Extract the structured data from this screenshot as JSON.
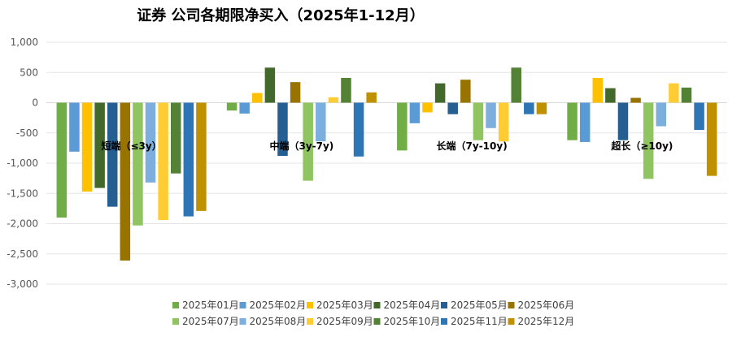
{
  "chart_data": {
    "type": "bar",
    "title": "证券 公司各期限净买入（2025年1-12月）",
    "xlabel": "",
    "ylabel": "",
    "ylim": [
      -3000,
      1000
    ],
    "yticks": [
      1000,
      500,
      0,
      -500,
      -1000,
      -1500,
      -2000,
      -2500,
      -3000
    ],
    "ytick_labels": [
      "1,000",
      "500",
      "0",
      "-500",
      "-1,000",
      "-1,500",
      "-2,000",
      "-2,500",
      "-3,000"
    ],
    "grid": true,
    "legend_position": "bottom",
    "categories": [
      "短端（≤3y）",
      "中端（3y-7y)",
      "长端（7y-10y)",
      "超长（≥10y)"
    ],
    "series": [
      {
        "name": "2025年01月",
        "color": "#70ad47",
        "values": [
          -1900,
          -130,
          -790,
          -620
        ]
      },
      {
        "name": "2025年02月",
        "color": "#5b9bd5",
        "values": [
          -810,
          -180,
          -340,
          -650
        ]
      },
      {
        "name": "2025年03月",
        "color": "#ffc000",
        "values": [
          -1470,
          160,
          -160,
          410
        ]
      },
      {
        "name": "2025年04月",
        "color": "#43682b",
        "values": [
          -1410,
          580,
          320,
          240
        ]
      },
      {
        "name": "2025年05月",
        "color": "#255e91",
        "values": [
          -1720,
          -880,
          -190,
          -620
        ]
      },
      {
        "name": "2025年06月",
        "color": "#997300",
        "values": [
          -2610,
          340,
          380,
          80
        ]
      },
      {
        "name": "2025年07月",
        "color": "#8fc461",
        "values": [
          -2030,
          -1290,
          -620,
          -1260
        ]
      },
      {
        "name": "2025年08月",
        "color": "#7cafdd",
        "values": [
          -1320,
          -640,
          -420,
          -390
        ]
      },
      {
        "name": "2025年09月",
        "color": "#ffcd33",
        "values": [
          -1940,
          90,
          -640,
          320
        ]
      },
      {
        "name": "2025年10月",
        "color": "#548235",
        "values": [
          -1170,
          410,
          580,
          250
        ]
      },
      {
        "name": "2025年11月",
        "color": "#2e75b6",
        "values": [
          -1880,
          -890,
          -190,
          -450
        ]
      },
      {
        "name": "2025年12月",
        "color": "#bf9000",
        "values": [
          -1790,
          170,
          -190,
          -1210
        ]
      }
    ]
  }
}
